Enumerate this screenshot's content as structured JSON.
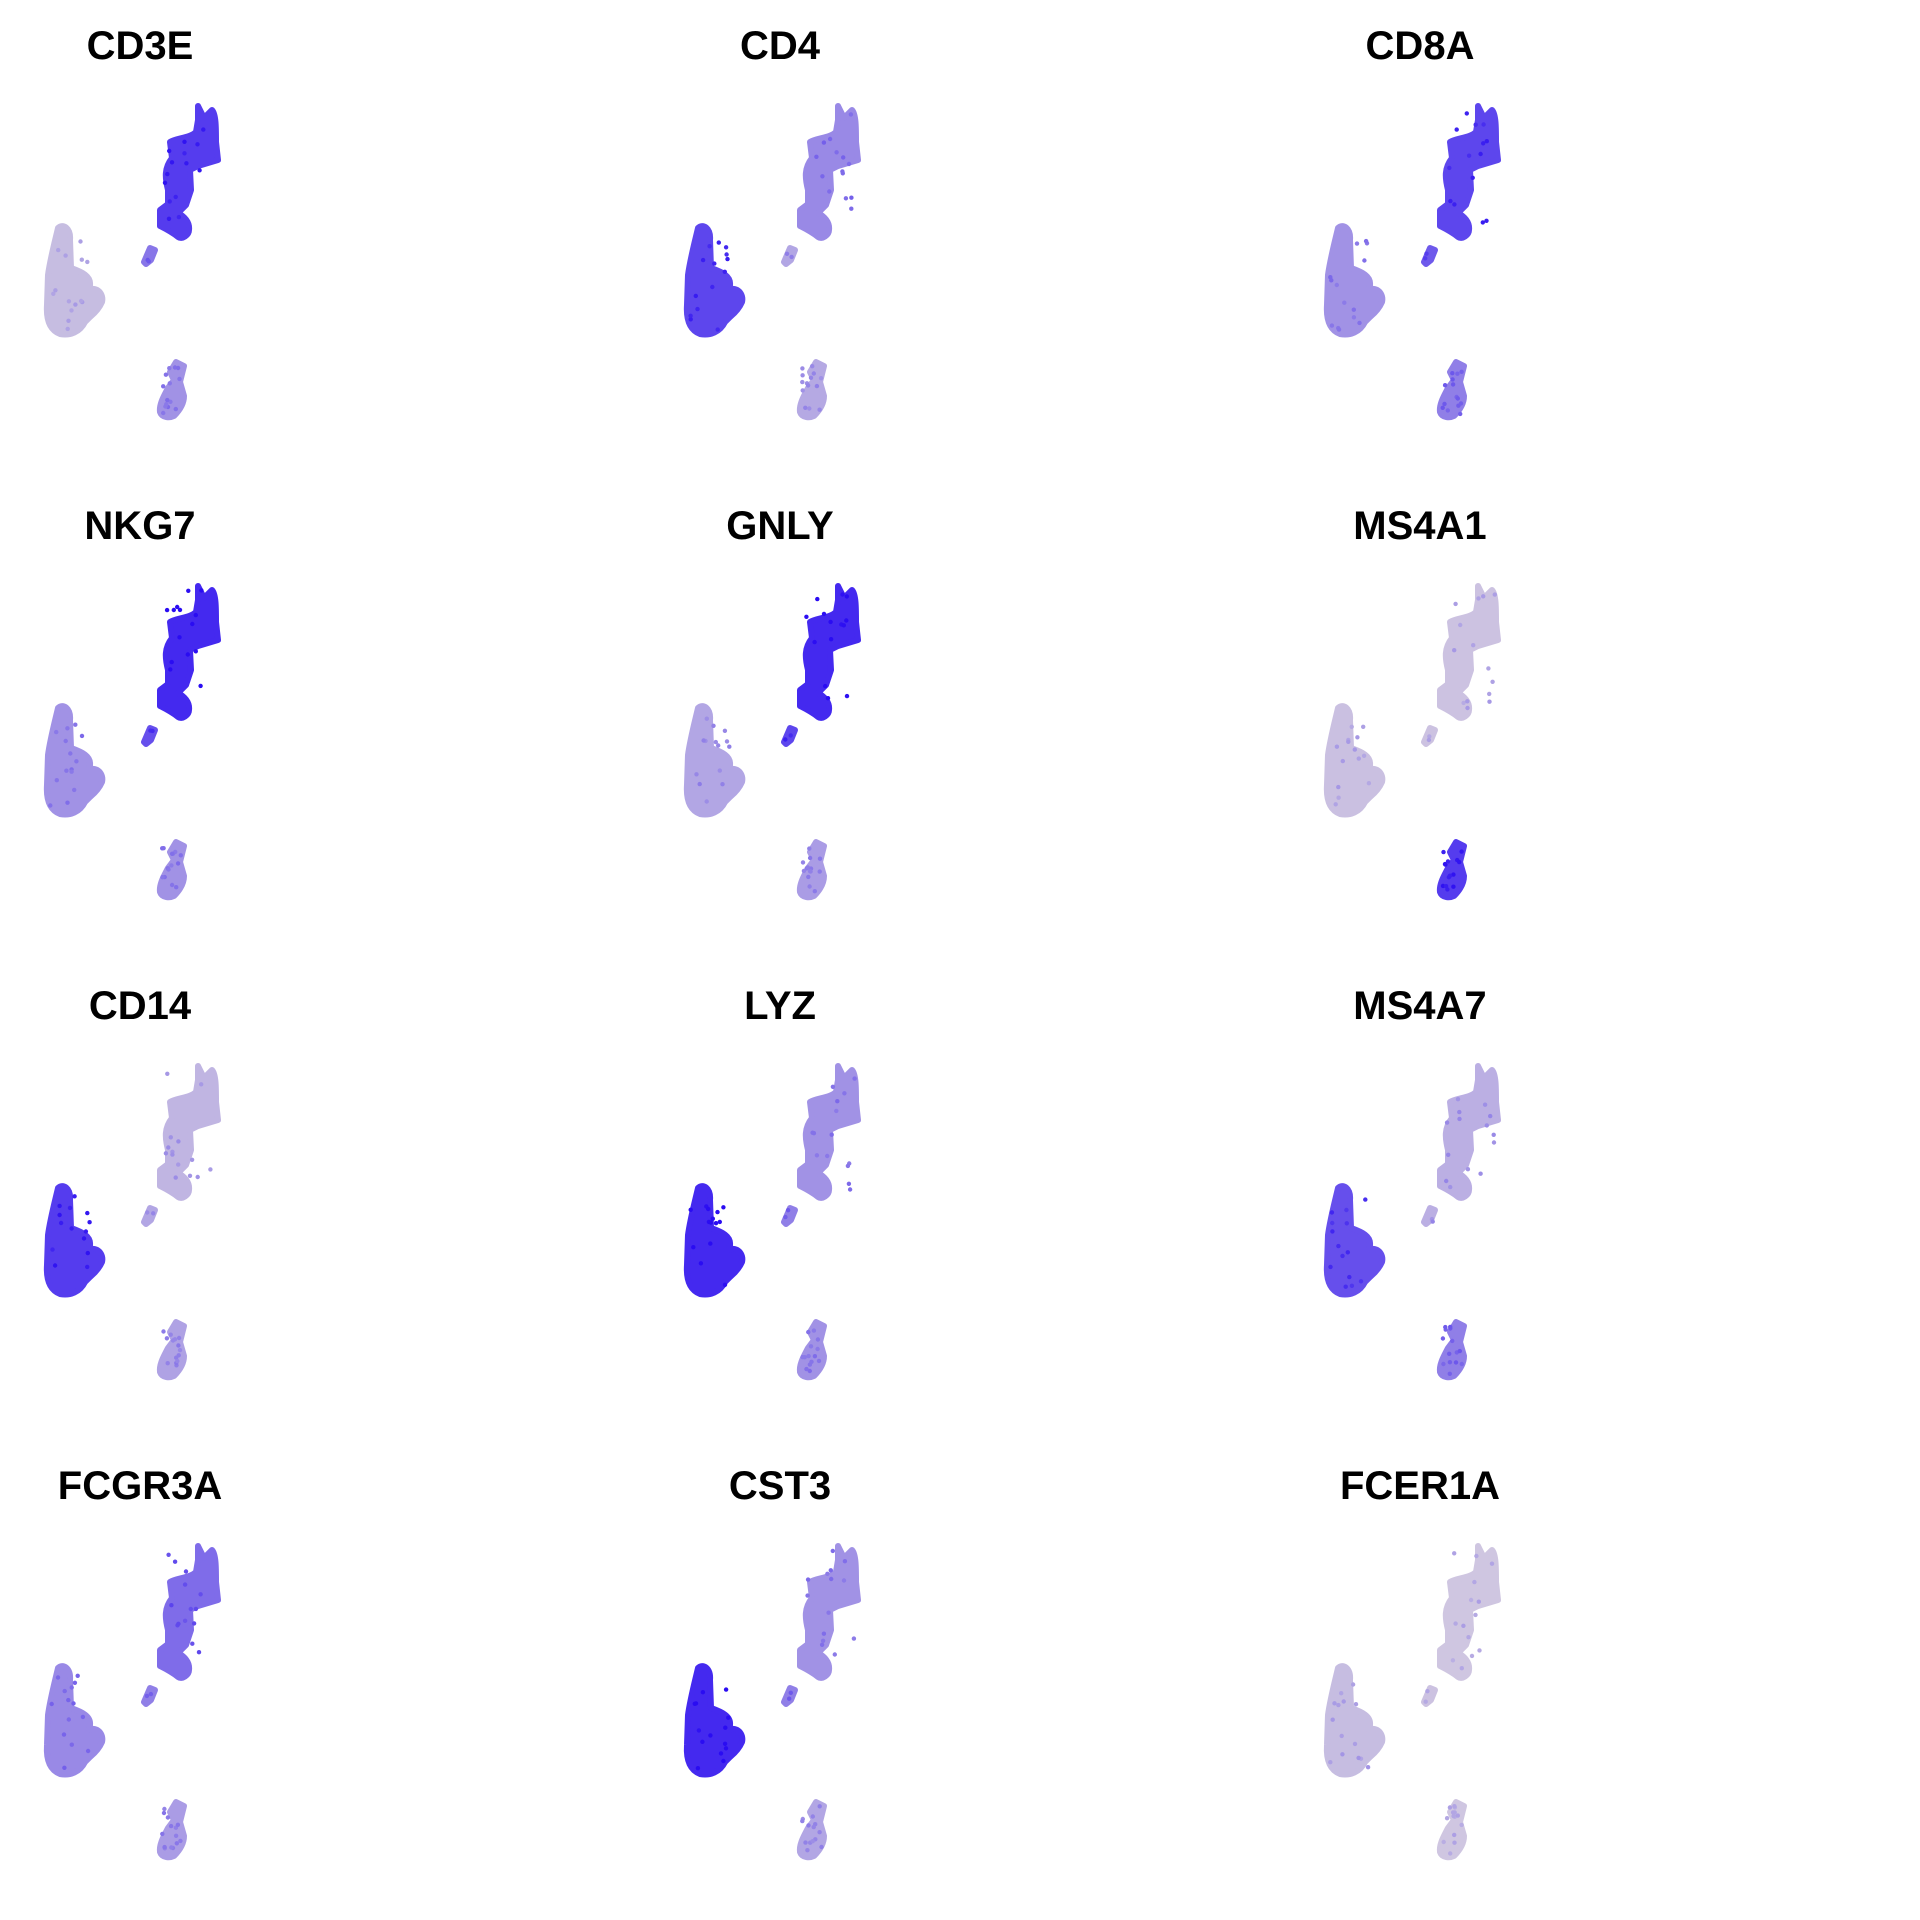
{
  "colors": {
    "low": "#d4cce0",
    "high": "#2a0cf2",
    "background": "#ffffff"
  },
  "chart_data": [
    {
      "type": "scatter",
      "title": "CD3E",
      "cluster_levels": {
        "monocyte": 0.08,
        "tcell_nk": 0.75,
        "small": 0.45,
        "bcell": 0.3
      }
    },
    {
      "type": "scatter",
      "title": "CD4",
      "cluster_levels": {
        "monocyte": 0.7,
        "tcell_nk": 0.35,
        "small": 0.2,
        "bcell": 0.18
      }
    },
    {
      "type": "scatter",
      "title": "CD8A",
      "cluster_levels": {
        "monocyte": 0.3,
        "tcell_nk": 0.7,
        "small": 0.6,
        "bcell": 0.4
      }
    },
    {
      "type": "scatter",
      "title": "NKG7",
      "cluster_levels": {
        "monocyte": 0.3,
        "tcell_nk": 0.85,
        "small": 0.65,
        "bcell": 0.3
      }
    },
    {
      "type": "scatter",
      "title": "GNLY",
      "cluster_levels": {
        "monocyte": 0.2,
        "tcell_nk": 0.85,
        "small": 0.7,
        "bcell": 0.25
      }
    },
    {
      "type": "scatter",
      "title": "MS4A1",
      "cluster_levels": {
        "monocyte": 0.06,
        "tcell_nk": 0.05,
        "small": 0.05,
        "bcell": 0.75
      }
    },
    {
      "type": "scatter",
      "title": "CD14",
      "cluster_levels": {
        "monocyte": 0.75,
        "tcell_nk": 0.12,
        "small": 0.2,
        "bcell": 0.22
      }
    },
    {
      "type": "scatter",
      "title": "LYZ",
      "cluster_levels": {
        "monocyte": 0.85,
        "tcell_nk": 0.3,
        "small": 0.4,
        "bcell": 0.3
      }
    },
    {
      "type": "scatter",
      "title": "MS4A7",
      "cluster_levels": {
        "monocyte": 0.65,
        "tcell_nk": 0.15,
        "small": 0.15,
        "bcell": 0.4
      }
    },
    {
      "type": "scatter",
      "title": "FCGR3A",
      "cluster_levels": {
        "monocyte": 0.35,
        "tcell_nk": 0.5,
        "small": 0.4,
        "bcell": 0.25
      }
    },
    {
      "type": "scatter",
      "title": "CST3",
      "cluster_levels": {
        "monocyte": 0.85,
        "tcell_nk": 0.3,
        "small": 0.4,
        "bcell": 0.2
      }
    },
    {
      "type": "scatter",
      "title": "FCER1A",
      "cluster_levels": {
        "monocyte": 0.08,
        "tcell_nk": 0.03,
        "small": 0.05,
        "bcell": 0.03
      }
    }
  ]
}
